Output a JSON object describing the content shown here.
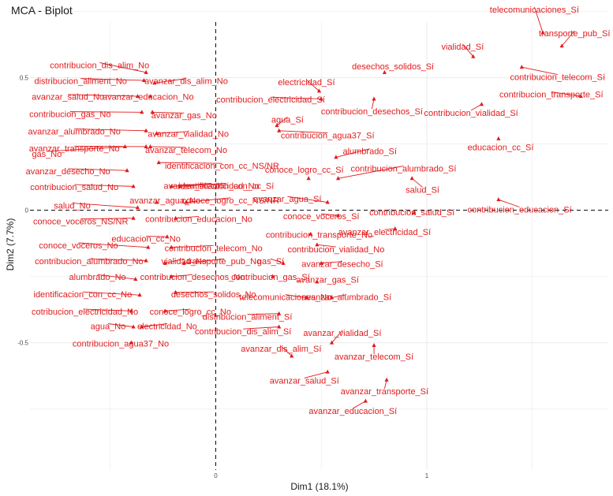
{
  "chart_data": {
    "type": "scatter",
    "title": "MCA - Biplot",
    "xlabel": "Dim1 (18.1%)",
    "ylabel": "Dim2 (7.7%)",
    "xlim": [
      -0.88,
      1.86
    ],
    "ylim": [
      -0.98,
      0.71
    ],
    "xticks": [
      0,
      1
    ],
    "yticks": [
      -0.5,
      0,
      0.5
    ],
    "color": "#e31a1c",
    "points": [
      {
        "label": "telecomunicaciones_Sí",
        "x": 1.55,
        "y": 0.67,
        "lx": 1.51,
        "ly": 0.755
      },
      {
        "label": "transporte_pub_Sí",
        "x": 1.64,
        "y": 0.62,
        "lx": 1.7,
        "ly": 0.665
      },
      {
        "label": "vialidad_Sí",
        "x": 1.22,
        "y": 0.58,
        "lx": 1.17,
        "ly": 0.615
      },
      {
        "label": "contribucion_telecom_Sí",
        "x": 1.45,
        "y": 0.54,
        "lx": 1.62,
        "ly": 0.5
      },
      {
        "label": "desechos_solidos_Sí",
        "x": 0.8,
        "y": 0.52,
        "lx": 0.84,
        "ly": 0.54
      },
      {
        "label": "contribucion_transporte_Sí",
        "x": 1.73,
        "y": 0.43,
        "lx": 1.59,
        "ly": 0.435
      },
      {
        "label": "contribucion_vialidad_Sí",
        "x": 1.26,
        "y": 0.4,
        "lx": 1.21,
        "ly": 0.365
      },
      {
        "label": "electricidad_Sí",
        "x": 0.49,
        "y": 0.45,
        "lx": 0.43,
        "ly": 0.48
      },
      {
        "label": "contribucion_electricidad_Sí",
        "x": 0.5,
        "y": 0.42,
        "lx": 0.26,
        "ly": 0.415
      },
      {
        "label": "contribucion_desechos_Sí",
        "x": 0.75,
        "y": 0.42,
        "lx": 0.74,
        "ly": 0.37
      },
      {
        "label": "agua_Sí",
        "x": 0.29,
        "y": 0.32,
        "lx": 0.34,
        "ly": 0.34
      },
      {
        "label": "contribucion_agua37_Sí",
        "x": 0.3,
        "y": 0.3,
        "lx": 0.53,
        "ly": 0.28
      },
      {
        "label": "educacion_cc_Sí",
        "x": 1.34,
        "y": 0.27,
        "lx": 1.35,
        "ly": 0.235
      },
      {
        "label": "alumbrado_Sí",
        "x": 0.57,
        "y": 0.2,
        "lx": 0.73,
        "ly": 0.22
      },
      {
        "label": "contribucion_alumbrado_Sí",
        "x": 0.58,
        "y": 0.12,
        "lx": 0.89,
        "ly": 0.155
      },
      {
        "label": "conoce_logro_cc_Sí",
        "x": 0.44,
        "y": 0.12,
        "lx": 0.42,
        "ly": 0.15
      },
      {
        "label": "salud_Sí",
        "x": 0.93,
        "y": 0.12,
        "lx": 0.98,
        "ly": 0.075
      },
      {
        "label": "contribucion_educacion_Sí",
        "x": 1.34,
        "y": 0.04,
        "lx": 1.44,
        "ly": 0.0
      },
      {
        "label": "contribucion_salud_Sí",
        "x": 0.94,
        "y": -0.01,
        "lx": 0.93,
        "ly": -0.01
      },
      {
        "label": "conoce_voceros_Sí",
        "x": 0.58,
        "y": -0.02,
        "lx": 0.5,
        "ly": -0.025
      },
      {
        "label": "avanzar_agua_Sí",
        "x": 0.53,
        "y": 0.03,
        "lx": 0.34,
        "ly": 0.04
      },
      {
        "label": "avanzar_electricidad_Sí",
        "x": 0.85,
        "y": -0.07,
        "lx": 0.8,
        "ly": -0.085
      },
      {
        "label": "contribucion_vialidad_No",
        "x": 0.48,
        "y": -0.13,
        "lx": 0.57,
        "ly": -0.15
      },
      {
        "label": "contribucion_transporte_No",
        "x": 0.45,
        "y": -0.09,
        "lx": 0.49,
        "ly": -0.095
      },
      {
        "label": "avanzar_desecho_Sí",
        "x": 0.5,
        "y": -0.2,
        "lx": 0.6,
        "ly": -0.205
      },
      {
        "label": "avanzar_gas_Sí",
        "x": 0.48,
        "y": -0.27,
        "lx": 0.53,
        "ly": -0.265
      },
      {
        "label": "gas_Sí",
        "x": 0.32,
        "y": -0.2,
        "lx": 0.26,
        "ly": -0.195
      },
      {
        "label": "contribucion_gas_Sí",
        "x": 0.27,
        "y": -0.25,
        "lx": 0.26,
        "ly": -0.255
      },
      {
        "label": "avanzar_alumbrado_Sí",
        "x": 0.55,
        "y": -0.33,
        "lx": 0.62,
        "ly": -0.33
      },
      {
        "label": "telecomunicaciones_No",
        "x": 0.43,
        "y": -0.33,
        "lx": 0.33,
        "ly": -0.33
      },
      {
        "label": "distribucion_aliment_Sí",
        "x": 0.3,
        "y": -0.39,
        "lx": 0.15,
        "ly": -0.405
      },
      {
        "label": "contribucion_dis_alim_Sí",
        "x": 0.3,
        "y": -0.44,
        "lx": 0.13,
        "ly": -0.46
      },
      {
        "label": "avanzar_vialidad_Sí",
        "x": 0.55,
        "y": -0.5,
        "lx": 0.6,
        "ly": -0.465
      },
      {
        "label": "avanzar_dis_alim_Sí",
        "x": 0.36,
        "y": -0.55,
        "lx": 0.31,
        "ly": -0.525
      },
      {
        "label": "avanzar_telecom_Sí",
        "x": 0.75,
        "y": -0.51,
        "lx": 0.75,
        "ly": -0.555
      },
      {
        "label": "avanzar_salud_Sí",
        "x": 0.53,
        "y": -0.61,
        "lx": 0.42,
        "ly": -0.645
      },
      {
        "label": "avanzar_transporte_Sí",
        "x": 0.81,
        "y": -0.64,
        "lx": 0.8,
        "ly": -0.685
      },
      {
        "label": "avanzar_educacion_Sí",
        "x": 0.71,
        "y": -0.72,
        "lx": 0.65,
        "ly": -0.76
      },
      {
        "label": "contribucion_dis_alim_No",
        "x": -0.33,
        "y": 0.52,
        "lx": -0.55,
        "ly": 0.545
      },
      {
        "label": "distribucion_aliment_No",
        "x": -0.34,
        "y": 0.49,
        "lx": -0.64,
        "ly": 0.485
      },
      {
        "label": "avanzar_dis_alim_No",
        "x": -0.29,
        "y": 0.48,
        "lx": -0.14,
        "ly": 0.485
      },
      {
        "label": "avanzar_salud_No",
        "x": -0.37,
        "y": 0.43,
        "lx": -0.7,
        "ly": 0.425
      },
      {
        "label": "avanzar_educacion_No",
        "x": -0.31,
        "y": 0.43,
        "lx": -0.32,
        "ly": 0.425
      },
      {
        "label": "contribucion_gas_No",
        "x": -0.35,
        "y": 0.37,
        "lx": -0.69,
        "ly": 0.36
      },
      {
        "label": "avanzar_gas_No",
        "x": -0.3,
        "y": 0.37,
        "lx": -0.15,
        "ly": 0.355
      },
      {
        "label": "avanzar_alumbrado_No",
        "x": -0.33,
        "y": 0.3,
        "lx": -0.67,
        "ly": 0.295
      },
      {
        "label": "avanzar_vialidad_No",
        "x": -0.28,
        "y": 0.29,
        "lx": -0.13,
        "ly": 0.285
      },
      {
        "label": "avanzar_transporte_No",
        "x": -0.33,
        "y": 0.24,
        "lx": -0.67,
        "ly": 0.23
      },
      {
        "label": "gas_No",
        "x": -0.43,
        "y": 0.24,
        "lx": -0.8,
        "ly": 0.21
      },
      {
        "label": "avanzar_telecom_No",
        "x": -0.31,
        "y": 0.24,
        "lx": -0.14,
        "ly": 0.225
      },
      {
        "label": "identificacion_con_cc_NS/NR",
        "x": -0.27,
        "y": 0.18,
        "lx": 0.03,
        "ly": 0.165
      },
      {
        "label": "avanzar_desecho_No",
        "x": -0.42,
        "y": 0.15,
        "lx": -0.7,
        "ly": 0.145
      },
      {
        "label": "contribucion_salud_No",
        "x": -0.39,
        "y": 0.09,
        "lx": -0.67,
        "ly": 0.085
      },
      {
        "label": "identificacion_con_cc_Sí",
        "x": -0.17,
        "y": 0.09,
        "lx": 0.05,
        "ly": 0.09
      },
      {
        "label": "avanzar_electricidad_No",
        "x": -0.21,
        "y": 0.09,
        "lx": -0.02,
        "ly": 0.09
      },
      {
        "label": "conoce_logro_cc_NS/NR",
        "x": -0.14,
        "y": 0.03,
        "lx": 0.07,
        "ly": 0.035
      },
      {
        "label": "avanzar_agua_No",
        "x": -0.28,
        "y": 0.03,
        "lx": -0.24,
        "ly": 0.035
      },
      {
        "label": "salud_No",
        "x": -0.37,
        "y": 0.01,
        "lx": -0.68,
        "ly": 0.015
      },
      {
        "label": "conoce_voceros_NS/NR",
        "x": -0.39,
        "y": -0.03,
        "lx": -0.64,
        "ly": -0.045
      },
      {
        "label": "contribucion_educacion_No",
        "x": -0.19,
        "y": -0.03,
        "lx": -0.08,
        "ly": -0.035
      },
      {
        "label": "educacion_cc_No",
        "x": -0.23,
        "y": -0.1,
        "lx": -0.33,
        "ly": -0.11
      },
      {
        "label": "conoce_voceros_No",
        "x": -0.32,
        "y": -0.14,
        "lx": -0.65,
        "ly": -0.135
      },
      {
        "label": "contribucion_telecom_No",
        "x": -0.21,
        "y": -0.14,
        "lx": -0.01,
        "ly": -0.145
      },
      {
        "label": "contribucion_alumbrado_No",
        "x": -0.33,
        "y": -0.19,
        "lx": -0.6,
        "ly": -0.195
      },
      {
        "label": "vialidad_No",
        "x": -0.24,
        "y": -0.2,
        "lx": -0.15,
        "ly": -0.195
      },
      {
        "label": "transporte_pub_No",
        "x": -0.15,
        "y": -0.2,
        "lx": 0.04,
        "ly": -0.195
      },
      {
        "label": "alumbrado_No",
        "x": -0.38,
        "y": -0.26,
        "lx": -0.56,
        "ly": -0.255
      },
      {
        "label": "contribucion_desechos_No",
        "x": -0.21,
        "y": -0.25,
        "lx": -0.11,
        "ly": -0.255
      },
      {
        "label": "identificacion_con_cc_No",
        "x": -0.36,
        "y": -0.32,
        "lx": -0.63,
        "ly": -0.32
      },
      {
        "label": "desechos_solidos_No",
        "x": -0.19,
        "y": -0.31,
        "lx": -0.01,
        "ly": -0.32
      },
      {
        "label": "cotribucion_electricidad_No",
        "x": -0.4,
        "y": -0.38,
        "lx": -0.62,
        "ly": -0.385
      },
      {
        "label": "conoce_logro_cc_No",
        "x": -0.24,
        "y": -0.38,
        "lx": -0.12,
        "ly": -0.385
      },
      {
        "label": "agua_No",
        "x": -0.39,
        "y": -0.44,
        "lx": -0.51,
        "ly": -0.44
      },
      {
        "label": "electricidad_No",
        "x": -0.35,
        "y": -0.44,
        "lx": -0.23,
        "ly": -0.44
      },
      {
        "label": "contribucion_agua37_No",
        "x": -0.4,
        "y": -0.5,
        "lx": -0.45,
        "ly": -0.505
      }
    ]
  }
}
